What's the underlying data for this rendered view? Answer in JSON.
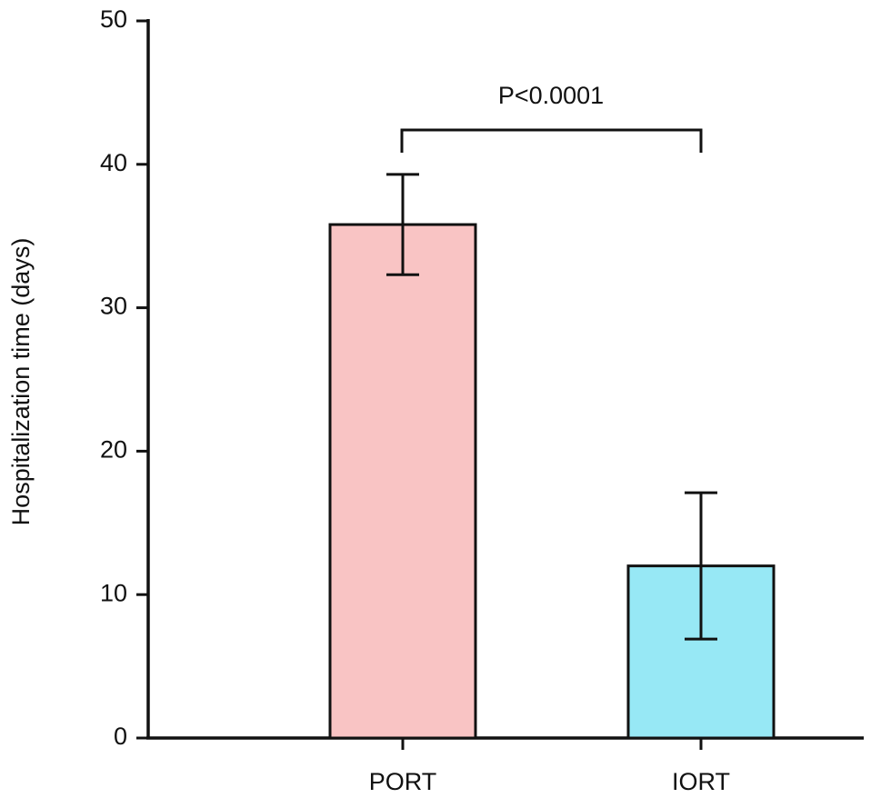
{
  "chart_data": {
    "type": "bar",
    "y_label": "Hospitalization time (days)",
    "categories": [
      "PORT",
      "IORT"
    ],
    "values": [
      35.8,
      12.0
    ],
    "errors": [
      3.5,
      5.1
    ],
    "colors": [
      "#f9c4c4",
      "#97e8f5"
    ],
    "ylim": [
      0,
      50
    ],
    "yticks": [
      0,
      10,
      20,
      30,
      40,
      50
    ],
    "annotation": "P<0.0001"
  }
}
